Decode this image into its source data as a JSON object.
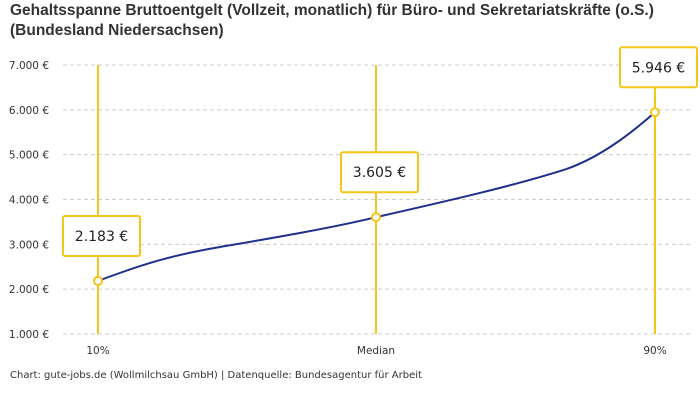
{
  "title": "Gehaltsspanne Bruttoentgelt (Vollzeit, monatlich) für Büro- und Sekretariatskräfte (o.S.) (Bundesland Niedersachsen)",
  "credit": "Chart: gute-jobs.de (Wollmilchsau GmbH) | Datenquelle: Bundesagentur für Arbeit",
  "colors": {
    "line": "#1f2f8c",
    "accent": "#f5c518",
    "grid": "#cccccc"
  },
  "chart_data": {
    "type": "line",
    "title": "Gehaltsspanne Bruttoentgelt (Vollzeit, monatlich) für Büro- und Sekretariatskräfte (o.S.) (Bundesland Niedersachsen)",
    "categories": [
      "10%",
      "Median",
      "90%"
    ],
    "values": [
      2183,
      3605,
      5946
    ],
    "data_labels": [
      "2.183 €",
      "3.605 €",
      "5.946 €"
    ],
    "ylim": [
      1000,
      7000
    ],
    "yticks": [
      1000,
      2000,
      3000,
      4000,
      5000,
      6000,
      7000
    ],
    "ytick_labels": [
      "1.000 €",
      "2.000 €",
      "3.000 €",
      "4.000 €",
      "5.000 €",
      "6.000 €",
      "7.000 €"
    ],
    "grid": true
  }
}
